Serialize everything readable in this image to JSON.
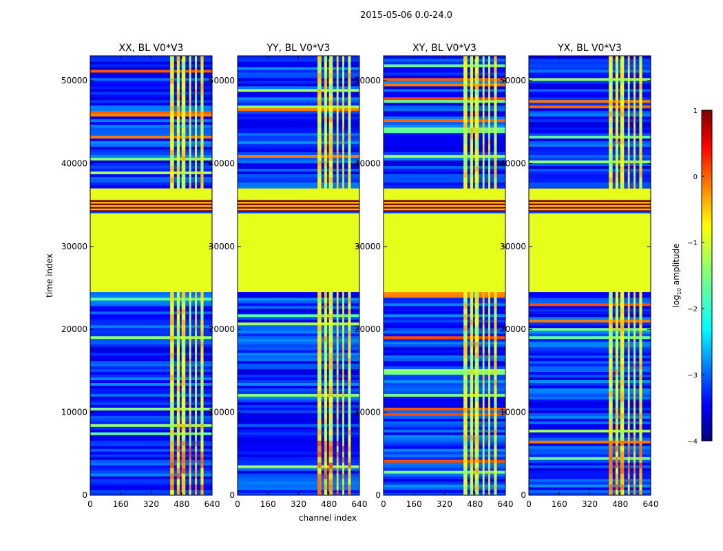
{
  "chart_data": {
    "type": "heatmap",
    "suptitle": "2015-05-06 0.0-24.0",
    "xlabel": "channel index",
    "ylabel": "time index",
    "xlim": [
      0,
      640
    ],
    "ylim": [
      0,
      53000
    ],
    "xticks": [
      "0",
      "160",
      "320",
      "480",
      "640"
    ],
    "yticks": [
      "0",
      "10000",
      "20000",
      "30000",
      "40000",
      "50000"
    ],
    "xtick_values": [
      0,
      160,
      320,
      480,
      640
    ],
    "ytick_values": [
      0,
      10000,
      20000,
      30000,
      40000,
      50000
    ],
    "panels": [
      {
        "title": "XX, BL V0*V3"
      },
      {
        "title": "YY, BL V0*V3"
      },
      {
        "title": "XY, BL V0*V3"
      },
      {
        "title": "YX, BL V0*V3"
      }
    ],
    "colorbar": {
      "label": "log10 amplitude",
      "colormap": "jet",
      "range": [
        -4,
        1
      ],
      "ticks": [
        "1",
        "0",
        "−1",
        "−2",
        "−3",
        "−4"
      ],
      "tick_values": [
        1,
        0,
        -1,
        -2,
        -3,
        -4
      ]
    },
    "regions": {
      "flagged_block_time": [
        24500,
        34000
      ],
      "flagged_block_value": -1.0,
      "saturated_rows_time": [
        34200,
        35600
      ],
      "saturated_rows_value": 1.0,
      "band_channels": [
        [
          420,
          440
        ],
        [
          455,
          470
        ],
        [
          480,
          500
        ],
        [
          520,
          530
        ],
        [
          550,
          560
        ],
        [
          580,
          595
        ]
      ],
      "background_value": -3.0,
      "band_value": -1.0
    }
  }
}
